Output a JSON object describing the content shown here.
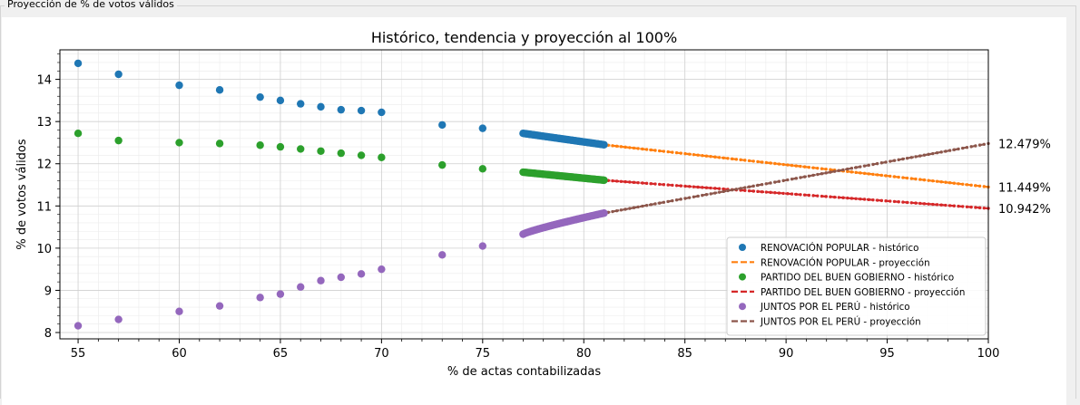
{
  "window": {
    "group_title": "Proyección de % de votos válidos"
  },
  "chart_data": {
    "type": "scatter",
    "title": "Histórico, tendencia y proyección al 100%",
    "xlabel": "% de actas contabilizadas",
    "ylabel": "% de votos válidos",
    "xlim": [
      54.1,
      100
    ],
    "ylim": [
      7.85,
      14.7
    ],
    "xticks": [
      55,
      60,
      65,
      70,
      75,
      80,
      85,
      90,
      95,
      100
    ],
    "yticks": [
      8,
      9,
      10,
      11,
      12,
      13,
      14
    ],
    "grid": true,
    "legend_position": "lower-right",
    "historical_x": [
      55,
      57,
      60,
      62,
      64,
      65,
      66,
      67,
      68,
      69,
      70,
      73,
      75
    ],
    "dense_range": [
      77,
      81
    ],
    "projection_range": [
      81,
      100
    ],
    "series": [
      {
        "name": "RENOVACIÓN POPULAR",
        "color": "#1f77b4",
        "projection_color": "#ff7f0e",
        "historical_label": "RENOVACIÓN POPULAR - histórico",
        "projection_label": "RENOVACIÓN POPULAR - proyección",
        "historical_y": [
          14.38,
          14.12,
          13.86,
          13.75,
          13.58,
          13.5,
          13.42,
          13.35,
          13.28,
          13.26,
          13.22,
          12.92,
          12.84
        ],
        "dense_y": [
          12.72,
          12.45
        ],
        "projection_y": [
          12.45,
          11.449
        ],
        "final_label": "11.449%"
      },
      {
        "name": "PARTIDO DEL BUEN GOBIERNO",
        "color": "#2ca02c",
        "projection_color": "#d62728",
        "historical_label": "PARTIDO DEL BUEN GOBIERNO - histórico",
        "projection_label": "PARTIDO DEL BUEN GOBIERNO - proyección",
        "historical_y": [
          12.72,
          12.55,
          12.5,
          12.48,
          12.44,
          12.4,
          12.35,
          12.3,
          12.25,
          12.2,
          12.15,
          11.97,
          11.88
        ],
        "dense_y": [
          11.8,
          11.61
        ],
        "projection_y": [
          11.61,
          10.942
        ],
        "final_label": "10.942%"
      },
      {
        "name": "JUNTOS POR EL PERÚ",
        "color": "#9467bd",
        "projection_color": "#8c564b",
        "historical_label": "JUNTOS POR EL PERÚ - histórico",
        "projection_label": "JUNTOS POR EL PERÚ - proyección",
        "historical_y": [
          8.16,
          8.31,
          8.5,
          8.63,
          8.83,
          8.91,
          9.08,
          9.23,
          9.31,
          9.39,
          9.5,
          9.84,
          10.05
        ],
        "dense_y": [
          10.33,
          10.83
        ],
        "projection_y": [
          10.83,
          12.479
        ],
        "final_label": "12.479%"
      }
    ]
  }
}
